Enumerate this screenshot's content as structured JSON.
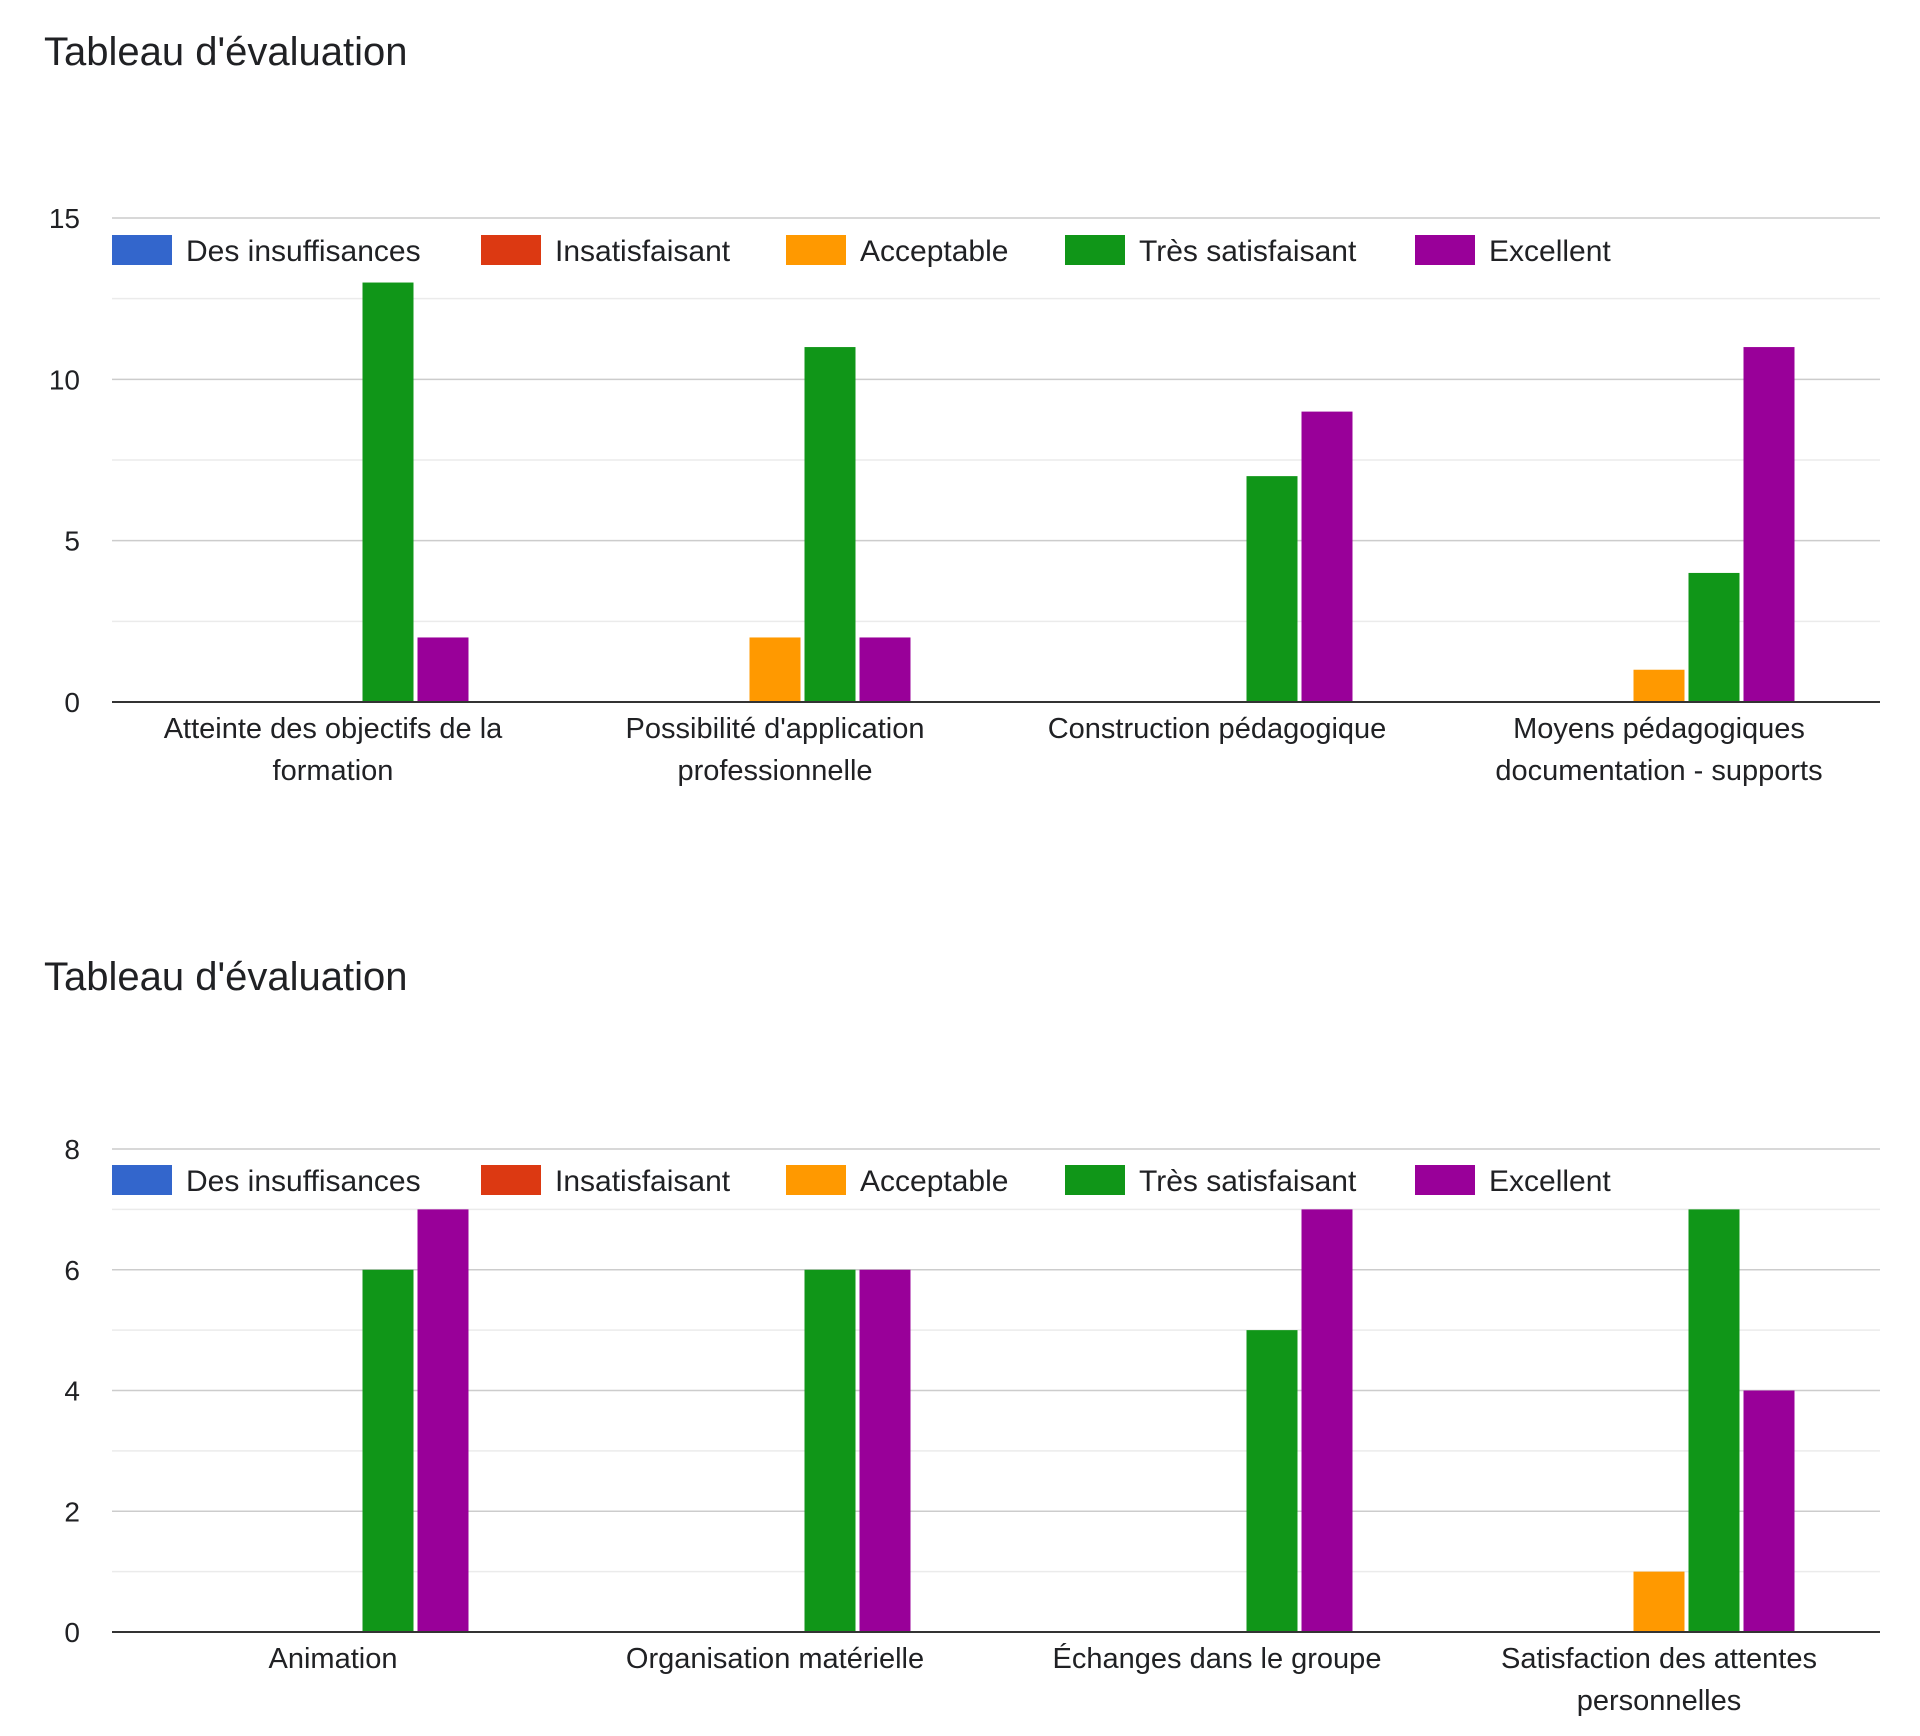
{
  "chart_data": [
    {
      "type": "bar",
      "title": "Tableau d'évaluation",
      "xlabel": "",
      "ylabel": "",
      "ylim": [
        0,
        15
      ],
      "yticks": [
        0,
        5,
        10,
        15
      ],
      "grid": true,
      "legend_position": "top",
      "categories": [
        [
          "Atteinte des objectifs de la",
          "formation"
        ],
        [
          "Possibilité d'application",
          "professionnelle"
        ],
        [
          "Construction pédagogique"
        ],
        [
          "Moyens pédagogiques",
          "documentation - supports"
        ]
      ],
      "series": [
        {
          "name": "Des insuffisances",
          "color": "#3366cc",
          "values": [
            0,
            0,
            0,
            0
          ]
        },
        {
          "name": "Insatisfaisant",
          "color": "#dc3912",
          "values": [
            0,
            0,
            0,
            0
          ]
        },
        {
          "name": "Acceptable",
          "color": "#ff9900",
          "values": [
            0,
            2,
            0,
            1
          ]
        },
        {
          "name": "Très satisfaisant",
          "color": "#109618",
          "values": [
            13,
            11,
            7,
            4
          ]
        },
        {
          "name": "Excellent",
          "color": "#990099",
          "values": [
            2,
            2,
            9,
            11
          ]
        }
      ]
    },
    {
      "type": "bar",
      "title": "Tableau d'évaluation",
      "xlabel": "",
      "ylabel": "",
      "ylim": [
        0,
        8
      ],
      "yticks": [
        0,
        2,
        4,
        6,
        8
      ],
      "grid": true,
      "legend_position": "top",
      "categories": [
        [
          "Animation"
        ],
        [
          "Organisation matérielle"
        ],
        [
          "Échanges dans le groupe"
        ],
        [
          "Satisfaction des attentes",
          "personnelles"
        ]
      ],
      "series": [
        {
          "name": "Des insuffisances",
          "color": "#3366cc",
          "values": [
            0,
            0,
            0,
            0
          ]
        },
        {
          "name": "Insatisfaisant",
          "color": "#dc3912",
          "values": [
            0,
            0,
            0,
            0
          ]
        },
        {
          "name": "Acceptable",
          "color": "#ff9900",
          "values": [
            0,
            0,
            0,
            1
          ]
        },
        {
          "name": "Très satisfaisant",
          "color": "#109618",
          "values": [
            6,
            6,
            5,
            7
          ]
        },
        {
          "name": "Excellent",
          "color": "#990099",
          "values": [
            7,
            6,
            7,
            4
          ]
        }
      ]
    }
  ]
}
